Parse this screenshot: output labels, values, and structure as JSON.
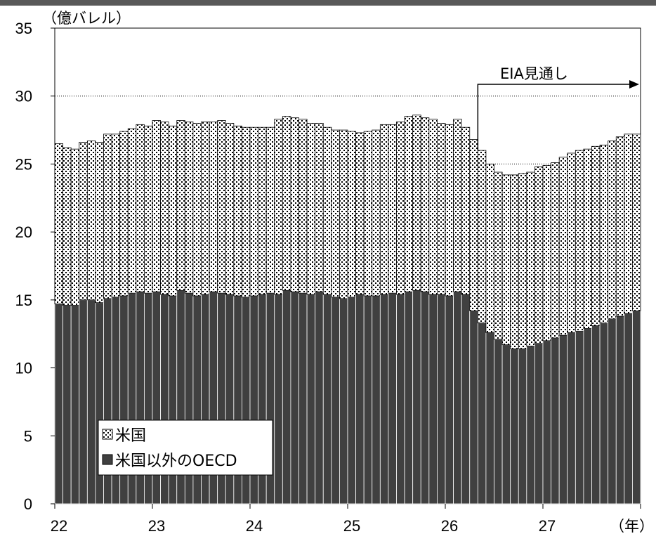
{
  "chart_data": {
    "type": "bar",
    "stacked": true,
    "y_unit_label": "（億バレル）",
    "x_unit_label": "（年）",
    "ylim": [
      0,
      35
    ],
    "yticks": [
      0,
      5,
      10,
      15,
      20,
      25,
      30,
      35
    ],
    "x_tick_labels": [
      "22",
      "23",
      "24",
      "25",
      "26",
      "27"
    ],
    "gridlines": [
      30,
      25
    ],
    "annotation": "EIA見通し",
    "forecast_start_index": 52,
    "legend": [
      {
        "label": "米国",
        "pattern": "dotted"
      },
      {
        "label": "米国以外のOECD",
        "pattern": "solid-dark"
      }
    ],
    "categories": [
      "22-01",
      "22-02",
      "22-03",
      "22-04",
      "22-05",
      "22-06",
      "22-07",
      "22-08",
      "22-09",
      "22-10",
      "22-11",
      "22-12",
      "23-01",
      "23-02",
      "23-03",
      "23-04",
      "23-05",
      "23-06",
      "23-07",
      "23-08",
      "23-09",
      "23-10",
      "23-11",
      "23-12",
      "24-01",
      "24-02",
      "24-03",
      "24-04",
      "24-05",
      "24-06",
      "24-07",
      "24-08",
      "24-09",
      "24-10",
      "24-11",
      "24-12",
      "25-01",
      "25-02",
      "25-03",
      "25-04",
      "25-05",
      "25-06",
      "25-07",
      "25-08",
      "25-09",
      "25-10",
      "25-11",
      "25-12",
      "26-01",
      "26-02",
      "26-03",
      "26-04",
      "26-05",
      "26-06",
      "26-07",
      "26-08",
      "26-09",
      "26-10",
      "26-11",
      "26-12",
      "27-01",
      "27-02",
      "27-03",
      "27-04",
      "27-05",
      "27-06",
      "27-07",
      "27-08",
      "27-09",
      "27-10",
      "27-11",
      "27-12"
    ],
    "series": [
      {
        "name": "米国以外のOECD",
        "values": [
          14.7,
          14.6,
          14.6,
          15.0,
          15.0,
          14.8,
          15.1,
          15.2,
          15.3,
          15.5,
          15.6,
          15.5,
          15.6,
          15.4,
          15.3,
          15.7,
          15.5,
          15.3,
          15.4,
          15.6,
          15.5,
          15.4,
          15.3,
          15.2,
          15.3,
          15.4,
          15.5,
          15.4,
          15.7,
          15.6,
          15.5,
          15.4,
          15.6,
          15.4,
          15.2,
          15.1,
          15.2,
          15.4,
          15.3,
          15.3,
          15.4,
          15.5,
          15.4,
          15.6,
          15.7,
          15.6,
          15.4,
          15.4,
          15.3,
          15.6,
          15.4,
          14.2,
          13.3,
          12.6,
          12.1,
          11.7,
          11.4,
          11.4,
          11.6,
          11.8,
          12.0,
          12.2,
          12.4,
          12.6,
          12.7,
          12.9,
          13.1,
          13.3,
          13.6,
          13.8,
          14.0,
          14.2
        ]
      },
      {
        "name": "米国",
        "values": [
          11.8,
          11.6,
          11.5,
          11.6,
          11.7,
          11.8,
          12.1,
          12.0,
          12.1,
          12.1,
          12.3,
          12.3,
          12.6,
          12.7,
          12.5,
          12.5,
          12.6,
          12.7,
          12.7,
          12.5,
          12.7,
          12.6,
          12.5,
          12.5,
          12.4,
          12.3,
          12.2,
          12.9,
          12.8,
          12.8,
          12.8,
          12.6,
          12.4,
          12.3,
          12.3,
          12.4,
          12.2,
          11.9,
          12.1,
          12.2,
          12.5,
          12.4,
          12.7,
          12.9,
          12.9,
          12.8,
          12.9,
          12.6,
          12.6,
          12.7,
          12.3,
          12.6,
          12.7,
          12.4,
          12.3,
          12.5,
          12.8,
          12.9,
          12.8,
          13.0,
          12.9,
          12.9,
          13.1,
          13.2,
          13.3,
          13.2,
          13.2,
          13.1,
          13.1,
          13.2,
          13.2,
          13.0
        ]
      }
    ]
  }
}
